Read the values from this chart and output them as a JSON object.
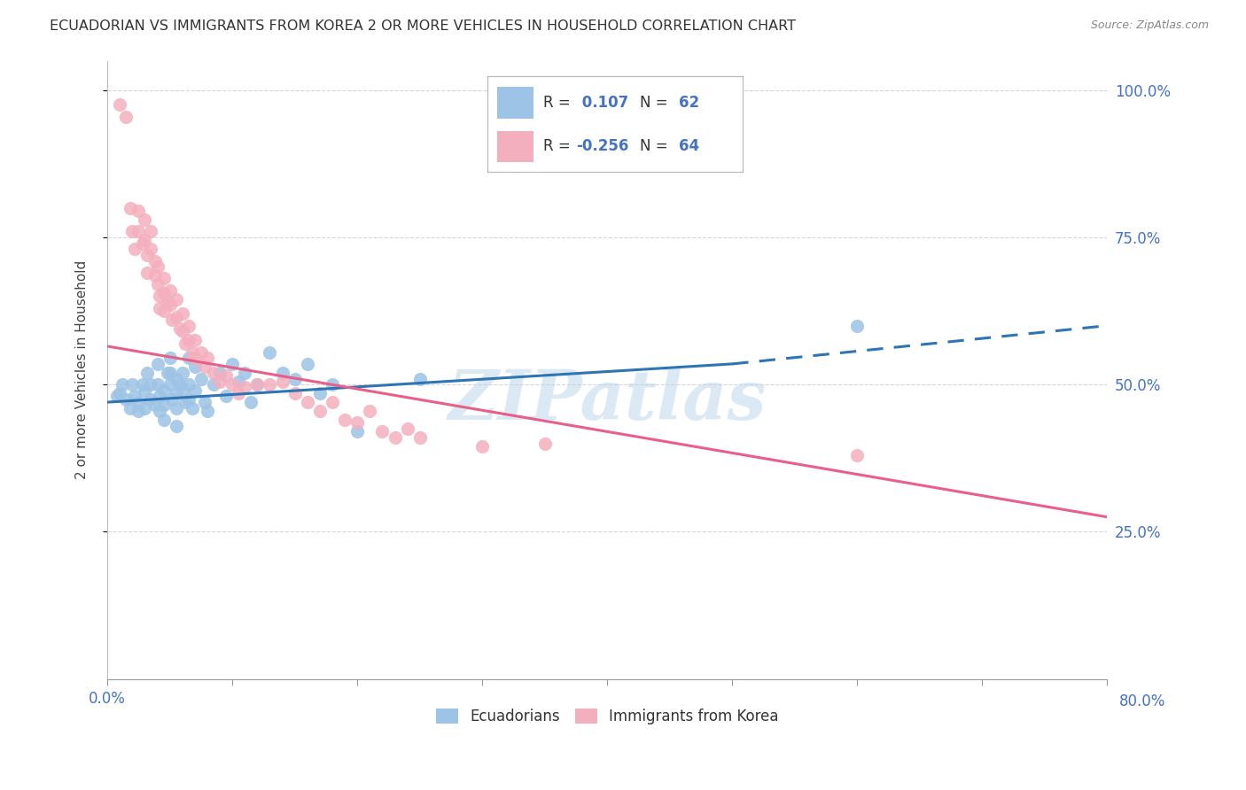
{
  "title": "ECUADORIAN VS IMMIGRANTS FROM KOREA 2 OR MORE VEHICLES IN HOUSEHOLD CORRELATION CHART",
  "source": "Source: ZipAtlas.com",
  "ylabel_label": "2 or more Vehicles in Household",
  "legend_blue_R": "0.107",
  "legend_blue_N": "62",
  "legend_pink_R": "-0.256",
  "legend_pink_N": "64",
  "xlim": [
    0.0,
    0.8
  ],
  "ylim": [
    0.0,
    1.05
  ],
  "blue_color": "#9dc3e6",
  "pink_color": "#f4afbe",
  "blue_line_color": "#2e75b6",
  "pink_line_color": "#e8608a",
  "watermark": "ZIPatlas",
  "blue_line_start_x": 0.0,
  "blue_line_start_y": 0.47,
  "blue_line_solid_end_x": 0.5,
  "blue_line_solid_end_y": 0.535,
  "blue_line_dash_end_x": 0.8,
  "blue_line_dash_end_y": 0.6,
  "pink_line_start_x": 0.0,
  "pink_line_start_y": 0.565,
  "pink_line_end_x": 0.8,
  "pink_line_end_y": 0.275,
  "blue_dots": [
    [
      0.008,
      0.48
    ],
    [
      0.01,
      0.485
    ],
    [
      0.012,
      0.5
    ],
    [
      0.015,
      0.475
    ],
    [
      0.018,
      0.46
    ],
    [
      0.02,
      0.5
    ],
    [
      0.022,
      0.48
    ],
    [
      0.025,
      0.455
    ],
    [
      0.025,
      0.47
    ],
    [
      0.028,
      0.5
    ],
    [
      0.03,
      0.49
    ],
    [
      0.03,
      0.46
    ],
    [
      0.032,
      0.52
    ],
    [
      0.035,
      0.5
    ],
    [
      0.035,
      0.475
    ],
    [
      0.038,
      0.465
    ],
    [
      0.04,
      0.535
    ],
    [
      0.04,
      0.5
    ],
    [
      0.042,
      0.48
    ],
    [
      0.042,
      0.455
    ],
    [
      0.045,
      0.49
    ],
    [
      0.045,
      0.465
    ],
    [
      0.045,
      0.44
    ],
    [
      0.048,
      0.52
    ],
    [
      0.05,
      0.545
    ],
    [
      0.05,
      0.52
    ],
    [
      0.05,
      0.5
    ],
    [
      0.052,
      0.475
    ],
    [
      0.055,
      0.51
    ],
    [
      0.055,
      0.485
    ],
    [
      0.055,
      0.46
    ],
    [
      0.055,
      0.43
    ],
    [
      0.058,
      0.5
    ],
    [
      0.06,
      0.52
    ],
    [
      0.06,
      0.49
    ],
    [
      0.062,
      0.47
    ],
    [
      0.065,
      0.545
    ],
    [
      0.065,
      0.5
    ],
    [
      0.065,
      0.475
    ],
    [
      0.068,
      0.46
    ],
    [
      0.07,
      0.53
    ],
    [
      0.07,
      0.49
    ],
    [
      0.075,
      0.51
    ],
    [
      0.078,
      0.47
    ],
    [
      0.08,
      0.455
    ],
    [
      0.085,
      0.5
    ],
    [
      0.09,
      0.52
    ],
    [
      0.095,
      0.48
    ],
    [
      0.1,
      0.535
    ],
    [
      0.105,
      0.505
    ],
    [
      0.11,
      0.52
    ],
    [
      0.115,
      0.47
    ],
    [
      0.12,
      0.5
    ],
    [
      0.13,
      0.555
    ],
    [
      0.14,
      0.52
    ],
    [
      0.15,
      0.51
    ],
    [
      0.16,
      0.535
    ],
    [
      0.17,
      0.485
    ],
    [
      0.18,
      0.5
    ],
    [
      0.2,
      0.42
    ],
    [
      0.25,
      0.51
    ],
    [
      0.6,
      0.6
    ]
  ],
  "pink_dots": [
    [
      0.01,
      0.975
    ],
    [
      0.015,
      0.955
    ],
    [
      0.018,
      0.8
    ],
    [
      0.02,
      0.76
    ],
    [
      0.022,
      0.73
    ],
    [
      0.025,
      0.795
    ],
    [
      0.025,
      0.76
    ],
    [
      0.028,
      0.74
    ],
    [
      0.03,
      0.78
    ],
    [
      0.03,
      0.745
    ],
    [
      0.032,
      0.72
    ],
    [
      0.032,
      0.69
    ],
    [
      0.035,
      0.76
    ],
    [
      0.035,
      0.73
    ],
    [
      0.038,
      0.71
    ],
    [
      0.038,
      0.685
    ],
    [
      0.04,
      0.7
    ],
    [
      0.04,
      0.67
    ],
    [
      0.042,
      0.65
    ],
    [
      0.042,
      0.63
    ],
    [
      0.045,
      0.68
    ],
    [
      0.045,
      0.655
    ],
    [
      0.045,
      0.625
    ],
    [
      0.048,
      0.64
    ],
    [
      0.05,
      0.66
    ],
    [
      0.05,
      0.635
    ],
    [
      0.052,
      0.61
    ],
    [
      0.055,
      0.645
    ],
    [
      0.055,
      0.615
    ],
    [
      0.058,
      0.595
    ],
    [
      0.06,
      0.62
    ],
    [
      0.06,
      0.59
    ],
    [
      0.062,
      0.57
    ],
    [
      0.065,
      0.6
    ],
    [
      0.065,
      0.575
    ],
    [
      0.068,
      0.555
    ],
    [
      0.07,
      0.575
    ],
    [
      0.07,
      0.545
    ],
    [
      0.075,
      0.555
    ],
    [
      0.078,
      0.53
    ],
    [
      0.08,
      0.545
    ],
    [
      0.085,
      0.52
    ],
    [
      0.09,
      0.505
    ],
    [
      0.095,
      0.515
    ],
    [
      0.1,
      0.5
    ],
    [
      0.105,
      0.485
    ],
    [
      0.11,
      0.495
    ],
    [
      0.12,
      0.5
    ],
    [
      0.13,
      0.5
    ],
    [
      0.14,
      0.505
    ],
    [
      0.15,
      0.485
    ],
    [
      0.16,
      0.47
    ],
    [
      0.17,
      0.455
    ],
    [
      0.18,
      0.47
    ],
    [
      0.19,
      0.44
    ],
    [
      0.2,
      0.435
    ],
    [
      0.21,
      0.455
    ],
    [
      0.22,
      0.42
    ],
    [
      0.23,
      0.41
    ],
    [
      0.24,
      0.425
    ],
    [
      0.25,
      0.41
    ],
    [
      0.3,
      0.395
    ],
    [
      0.35,
      0.4
    ],
    [
      0.6,
      0.38
    ]
  ]
}
